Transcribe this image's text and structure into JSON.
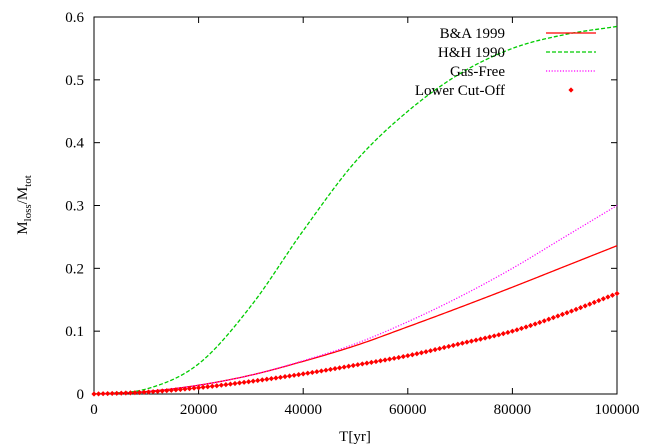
{
  "chart_data": {
    "type": "line",
    "xlabel": "T[yr]",
    "ylabel": {
      "main": "M",
      "sub1": "loss",
      "sep": "/M",
      "sub2": "tot"
    },
    "xlim": [
      0,
      100000
    ],
    "ylim": [
      0,
      0.6
    ],
    "xticks": [
      "0",
      "20000",
      "40000",
      "60000",
      "80000",
      "100000"
    ],
    "yticks": [
      "0",
      "0.1",
      "0.2",
      "0.3",
      "0.4",
      "0.5",
      "0.6"
    ],
    "grid": false,
    "legend_position": "top-right",
    "series": [
      {
        "name": "B&A 1999",
        "style": "solid",
        "color": "#ff0000",
        "x": [
          0,
          10000,
          20000,
          30000,
          40000,
          50000,
          60000,
          70000,
          80000,
          90000,
          100000
        ],
        "y": [
          0,
          0.004,
          0.014,
          0.03,
          0.052,
          0.077,
          0.107,
          0.138,
          0.17,
          0.203,
          0.236
        ]
      },
      {
        "name": "H&H 1990",
        "style": "dashed",
        "color": "#00cc00",
        "x": [
          0,
          10000,
          20000,
          30000,
          40000,
          50000,
          60000,
          70000,
          80000,
          90000,
          100000
        ],
        "y": [
          0,
          0.008,
          0.048,
          0.14,
          0.26,
          0.37,
          0.45,
          0.51,
          0.55,
          0.572,
          0.585
        ]
      },
      {
        "name": "Gas-Free",
        "style": "dotted",
        "color": "#ff00ff",
        "x": [
          0,
          10000,
          20000,
          30000,
          40000,
          50000,
          60000,
          70000,
          80000,
          90000,
          100000
        ],
        "y": [
          0,
          0.004,
          0.014,
          0.03,
          0.053,
          0.08,
          0.115,
          0.155,
          0.2,
          0.25,
          0.3
        ]
      },
      {
        "name": "Lower Cut-Off",
        "style": "markers",
        "color": "#ff0000",
        "x": [
          0,
          10000,
          20000,
          30000,
          40000,
          50000,
          60000,
          70000,
          80000,
          90000,
          100000
        ],
        "y": [
          0,
          0.003,
          0.01,
          0.02,
          0.032,
          0.046,
          0.061,
          0.08,
          0.1,
          0.128,
          0.16
        ]
      }
    ]
  }
}
